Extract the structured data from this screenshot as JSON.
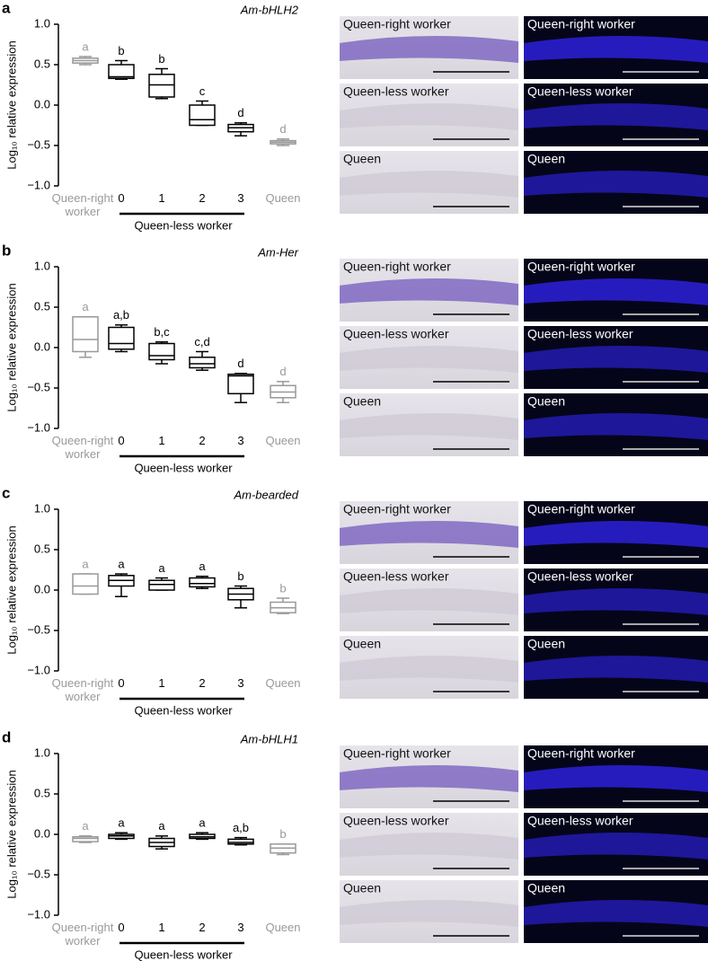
{
  "chart_data": [
    {
      "type": "box",
      "panel": "a",
      "title": "Am-bHLH2",
      "ylabel": "Log₁₀ relative expression",
      "categories": [
        "Queen-right worker",
        "0",
        "1",
        "2",
        "3",
        "Queen"
      ],
      "group_label": "Queen-less worker",
      "colors": [
        "#999999",
        "#000000",
        "#000000",
        "#000000",
        "#000000",
        "#999999"
      ],
      "ylim": [
        -1,
        1
      ],
      "yticks": [
        {
          "value": -1,
          "label": "−1.0"
        },
        {
          "value": -0.5,
          "label": "−0.5"
        },
        {
          "value": 0,
          "label": "0.0"
        },
        {
          "value": 0.5,
          "label": "0.5"
        },
        {
          "value": 1,
          "label": "1.0"
        }
      ],
      "boxes": [
        {
          "min": 0.5,
          "q1": 0.52,
          "median": 0.55,
          "q3": 0.58,
          "max": 0.6
        },
        {
          "min": 0.32,
          "q1": 0.33,
          "median": 0.35,
          "q3": 0.5,
          "max": 0.55
        },
        {
          "min": 0.08,
          "q1": 0.1,
          "median": 0.25,
          "q3": 0.38,
          "max": 0.45
        },
        {
          "min": -0.25,
          "q1": -0.25,
          "median": -0.18,
          "q3": 0,
          "max": 0.05
        },
        {
          "min": -0.38,
          "q1": -0.33,
          "median": -0.28,
          "q3": -0.24,
          "max": -0.22
        },
        {
          "min": -0.5,
          "q1": -0.48,
          "median": -0.46,
          "q3": -0.44,
          "max": -0.42
        }
      ],
      "letters": [
        "a",
        "b",
        "b",
        "c",
        "d",
        "d"
      ],
      "image_labels": [
        "Queen-right worker",
        "Queen-right worker",
        "Queen-less worker",
        "Queen-less worker",
        "Queen",
        "Queen"
      ]
    },
    {
      "type": "box",
      "panel": "b",
      "title": "Am-Her",
      "ylabel": "Log₁₀ relative expression",
      "categories": [
        "Queen-right worker",
        "0",
        "1",
        "2",
        "3",
        "Queen"
      ],
      "group_label": "Queen-less worker",
      "colors": [
        "#999999",
        "#000000",
        "#000000",
        "#000000",
        "#000000",
        "#999999"
      ],
      "ylim": [
        -1,
        1
      ],
      "yticks": [
        {
          "value": -1,
          "label": "−1.0"
        },
        {
          "value": -0.5,
          "label": "−0.5"
        },
        {
          "value": 0,
          "label": "0.0"
        },
        {
          "value": 0.5,
          "label": "0.5"
        },
        {
          "value": 1,
          "label": "1.0"
        }
      ],
      "boxes": [
        {
          "min": -0.12,
          "q1": -0.05,
          "median": 0.1,
          "q3": 0.38,
          "max": 0.38
        },
        {
          "min": -0.05,
          "q1": -0.02,
          "median": 0.05,
          "q3": 0.25,
          "max": 0.28
        },
        {
          "min": -0.2,
          "q1": -0.15,
          "median": -0.1,
          "q3": 0.05,
          "max": 0.07
        },
        {
          "min": -0.28,
          "q1": -0.25,
          "median": -0.2,
          "q3": -0.12,
          "max": -0.05
        },
        {
          "min": -0.68,
          "q1": -0.57,
          "median": -0.35,
          "q3": -0.33,
          "max": -0.32
        },
        {
          "min": -0.68,
          "q1": -0.62,
          "median": -0.55,
          "q3": -0.47,
          "max": -0.42
        }
      ],
      "letters": [
        "a",
        "a,b",
        "b,c",
        "c,d",
        "d",
        "d"
      ],
      "image_labels": [
        "Queen-right worker",
        "Queen-right worker",
        "Queen-less worker",
        "Queen-less worker",
        "Queen",
        "Queen"
      ]
    },
    {
      "type": "box",
      "panel": "c",
      "title": "Am-bearded",
      "ylabel": "Log₁₀ relative expression",
      "categories": [
        "Queen-right worker",
        "0",
        "1",
        "2",
        "3",
        "Queen"
      ],
      "group_label": "Queen-less worker",
      "colors": [
        "#999999",
        "#000000",
        "#000000",
        "#000000",
        "#000000",
        "#999999"
      ],
      "ylim": [
        -1,
        1
      ],
      "yticks": [
        {
          "value": -1,
          "label": "−1.0"
        },
        {
          "value": -0.5,
          "label": "−0.5"
        },
        {
          "value": 0,
          "label": "0.0"
        },
        {
          "value": 0.5,
          "label": "0.5"
        },
        {
          "value": 1,
          "label": "1.0"
        }
      ],
      "boxes": [
        {
          "min": -0.05,
          "q1": -0.05,
          "median": 0.05,
          "q3": 0.2,
          "max": 0.2
        },
        {
          "min": -0.08,
          "q1": 0.05,
          "median": 0.12,
          "q3": 0.18,
          "max": 0.2
        },
        {
          "min": 0,
          "q1": 0,
          "median": 0.07,
          "q3": 0.12,
          "max": 0.15
        },
        {
          "min": 0.02,
          "q1": 0.04,
          "median": 0.08,
          "q3": 0.15,
          "max": 0.17
        },
        {
          "min": -0.22,
          "q1": -0.12,
          "median": -0.05,
          "q3": 0.02,
          "max": 0.05
        },
        {
          "min": -0.29,
          "q1": -0.28,
          "median": -0.22,
          "q3": -0.15,
          "max": -0.1
        }
      ],
      "letters": [
        "a",
        "a",
        "a",
        "a",
        "b",
        "b"
      ],
      "image_labels": [
        "Queen-right worker",
        "Queen-right worker",
        "Queen-less worker",
        "Queen-less worker",
        "Queen",
        "Queen"
      ]
    },
    {
      "type": "box",
      "panel": "d",
      "title": "Am-bHLH1",
      "ylabel": "Log₁₀ relative expression",
      "categories": [
        "Queen-right worker",
        "0",
        "1",
        "2",
        "3",
        "Queen"
      ],
      "group_label": "Queen-less worker",
      "colors": [
        "#999999",
        "#000000",
        "#000000",
        "#000000",
        "#000000",
        "#999999"
      ],
      "ylim": [
        -1,
        1
      ],
      "yticks": [
        {
          "value": -1,
          "label": "−1.0"
        },
        {
          "value": -0.5,
          "label": "−0.5"
        },
        {
          "value": 0,
          "label": "0.0"
        },
        {
          "value": 0.5,
          "label": "0.5"
        },
        {
          "value": 1,
          "label": "1.0"
        }
      ],
      "boxes": [
        {
          "min": -0.1,
          "q1": -0.09,
          "median": -0.05,
          "q3": -0.03,
          "max": -0.02
        },
        {
          "min": -0.06,
          "q1": -0.05,
          "median": -0.02,
          "q3": 0,
          "max": 0.02
        },
        {
          "min": -0.18,
          "q1": -0.15,
          "median": -0.1,
          "q3": -0.05,
          "max": -0.02
        },
        {
          "min": -0.06,
          "q1": -0.05,
          "median": -0.03,
          "q3": 0,
          "max": 0.02
        },
        {
          "min": -0.13,
          "q1": -0.12,
          "median": -0.1,
          "q3": -0.06,
          "max": -0.04
        },
        {
          "min": -0.25,
          "q1": -0.23,
          "median": -0.17,
          "q3": -0.12,
          "max": -0.12
        }
      ],
      "letters": [
        "a",
        "a",
        "a",
        "a",
        "a,b",
        "b"
      ],
      "image_labels": [
        "Queen-right worker",
        "Queen-right worker",
        "Queen-less worker",
        "Queen-less worker",
        "Queen",
        "Queen"
      ]
    }
  ]
}
